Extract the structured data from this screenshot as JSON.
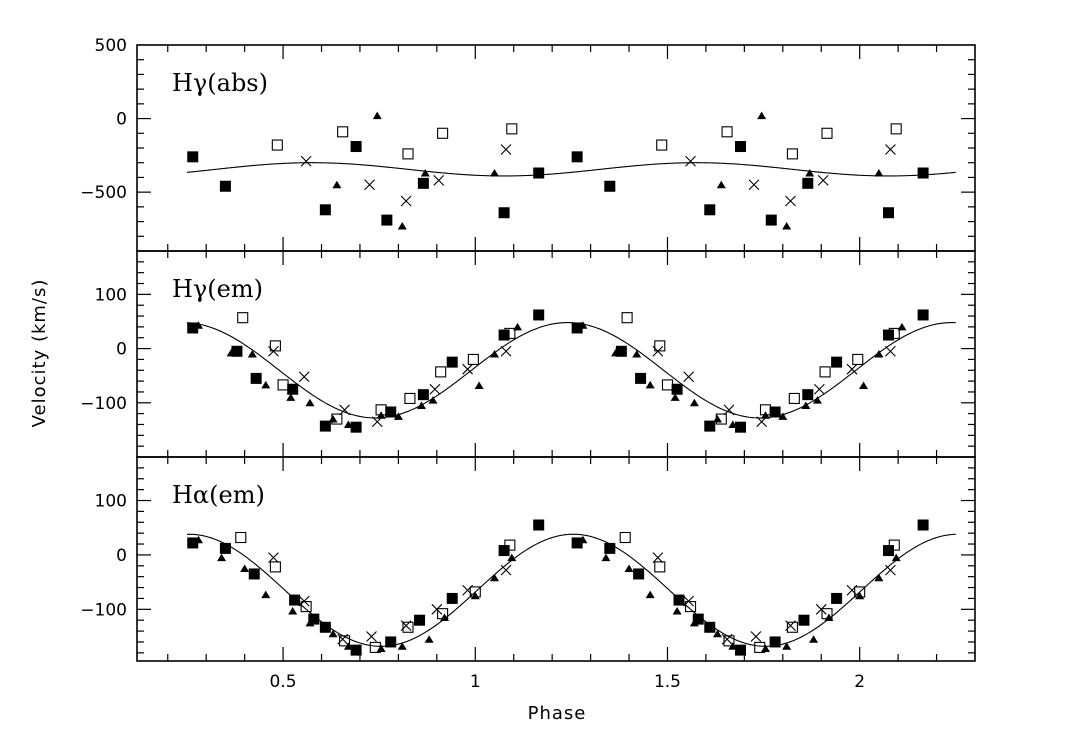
{
  "chart_data": {
    "type": "scatter",
    "xlabel": "Phase",
    "ylabel": "Velocity (km/s)",
    "xlim": [
      0.12,
      2.3
    ],
    "xticks": [
      "0.5",
      "1",
      "1.5",
      "2"
    ],
    "xtick_values": [
      0.5,
      1,
      1.5,
      2
    ],
    "colors": {
      "marker": "#000000",
      "background": "#ffffff"
    },
    "panels": [
      {
        "label": "Hγ(abs)",
        "ylim": [
          -900,
          500
        ],
        "yticks": [
          "500",
          "0",
          "−500"
        ],
        "ytick_values": [
          500,
          0,
          -500
        ],
        "fit": {
          "mean": -345,
          "amplitude": 45,
          "peak_phase": 0.575
        },
        "series": [
          {
            "marker": "filled-square",
            "points": [
              [
                0.265,
                -260
              ],
              [
                0.35,
                -460
              ],
              [
                0.61,
                -620
              ],
              [
                0.69,
                -190
              ],
              [
                0.77,
                -690
              ],
              [
                0.865,
                -440
              ],
              [
                1.075,
                -640
              ],
              [
                1.165,
                -370
              ],
              [
                1.265,
                -260
              ],
              [
                1.35,
                -460
              ],
              [
                1.61,
                -620
              ],
              [
                1.69,
                -190
              ],
              [
                1.77,
                -690
              ],
              [
                1.865,
                -440
              ],
              [
                2.075,
                -640
              ],
              [
                2.165,
                -370
              ]
            ]
          },
          {
            "marker": "open-square",
            "points": [
              [
                0.485,
                -180
              ],
              [
                0.655,
                -90
              ],
              [
                0.825,
                -240
              ],
              [
                0.915,
                -100
              ],
              [
                1.095,
                -70
              ],
              [
                1.485,
                -180
              ],
              [
                1.655,
                -90
              ],
              [
                1.825,
                -240
              ],
              [
                1.915,
                -100
              ],
              [
                2.095,
                -70
              ]
            ]
          },
          {
            "marker": "filled-triangle",
            "points": [
              [
                0.64,
                -450
              ],
              [
                0.745,
                20
              ],
              [
                0.81,
                -730
              ],
              [
                0.87,
                -370
              ],
              [
                1.05,
                -370
              ],
              [
                1.64,
                -450
              ],
              [
                1.745,
                20
              ],
              [
                1.81,
                -730
              ],
              [
                1.87,
                -370
              ],
              [
                2.05,
                -370
              ]
            ]
          },
          {
            "marker": "cross",
            "points": [
              [
                0.56,
                -290
              ],
              [
                0.725,
                -450
              ],
              [
                0.82,
                -560
              ],
              [
                0.905,
                -420
              ],
              [
                1.08,
                -210
              ],
              [
                1.56,
                -290
              ],
              [
                1.725,
                -450
              ],
              [
                1.82,
                -560
              ],
              [
                1.905,
                -420
              ],
              [
                2.08,
                -210
              ]
            ]
          }
        ]
      },
      {
        "label": "Hγ(em)",
        "ylim": [
          -200,
          180
        ],
        "yticks": [
          "100",
          "0",
          "−100"
        ],
        "ytick_values": [
          100,
          0,
          -100
        ],
        "fit": {
          "mean": -40,
          "amplitude": 88,
          "peak_phase": 1.24
        },
        "series": [
          {
            "marker": "filled-square",
            "points": [
              [
                0.265,
                38
              ],
              [
                0.38,
                -5
              ],
              [
                0.43,
                -55
              ],
              [
                0.525,
                -75
              ],
              [
                0.61,
                -143
              ],
              [
                0.69,
                -145
              ],
              [
                0.78,
                -117
              ],
              [
                0.865,
                -85
              ],
              [
                0.94,
                -25
              ],
              [
                1.075,
                25
              ],
              [
                1.165,
                62
              ],
              [
                1.265,
                38
              ],
              [
                1.38,
                -5
              ],
              [
                1.43,
                -55
              ],
              [
                1.525,
                -75
              ],
              [
                1.61,
                -143
              ],
              [
                1.69,
                -145
              ],
              [
                1.78,
                -117
              ],
              [
                1.865,
                -85
              ],
              [
                1.94,
                -25
              ],
              [
                2.075,
                25
              ],
              [
                2.165,
                62
              ]
            ]
          },
          {
            "marker": "open-square",
            "points": [
              [
                0.395,
                57
              ],
              [
                0.48,
                5
              ],
              [
                0.5,
                -67
              ],
              [
                0.64,
                -130
              ],
              [
                0.755,
                -113
              ],
              [
                0.83,
                -92
              ],
              [
                0.91,
                -43
              ],
              [
                0.995,
                -20
              ],
              [
                1.09,
                28
              ],
              [
                1.395,
                57
              ],
              [
                1.48,
                5
              ],
              [
                1.5,
                -67
              ],
              [
                1.64,
                -130
              ],
              [
                1.755,
                -113
              ],
              [
                1.83,
                -92
              ],
              [
                1.91,
                -43
              ],
              [
                1.995,
                -20
              ],
              [
                2.09,
                28
              ]
            ]
          },
          {
            "marker": "filled-triangle",
            "points": [
              [
                0.28,
                43
              ],
              [
                0.365,
                -8
              ],
              [
                0.42,
                -10
              ],
              [
                0.455,
                -67
              ],
              [
                0.52,
                -90
              ],
              [
                0.57,
                -100
              ],
              [
                0.63,
                -130
              ],
              [
                0.67,
                -140
              ],
              [
                0.755,
                -123
              ],
              [
                0.8,
                -125
              ],
              [
                0.86,
                -105
              ],
              [
                0.89,
                -95
              ],
              [
                1.01,
                -68
              ],
              [
                1.05,
                -10
              ],
              [
                1.11,
                40
              ],
              [
                1.28,
                43
              ],
              [
                1.365,
                -8
              ],
              [
                1.42,
                -10
              ],
              [
                1.455,
                -67
              ],
              [
                1.52,
                -90
              ],
              [
                1.57,
                -100
              ],
              [
                1.63,
                -130
              ],
              [
                1.67,
                -140
              ],
              [
                1.755,
                -123
              ],
              [
                1.8,
                -125
              ],
              [
                1.86,
                -105
              ],
              [
                1.89,
                -95
              ],
              [
                2.01,
                -68
              ],
              [
                2.05,
                -10
              ],
              [
                2.11,
                40
              ]
            ]
          },
          {
            "marker": "cross",
            "points": [
              [
                0.475,
                -5
              ],
              [
                0.555,
                -52
              ],
              [
                0.66,
                -113
              ],
              [
                0.745,
                -135
              ],
              [
                0.895,
                -75
              ],
              [
                0.98,
                -38
              ],
              [
                1.08,
                -5
              ],
              [
                1.475,
                -5
              ],
              [
                1.555,
                -52
              ],
              [
                1.66,
                -113
              ],
              [
                1.745,
                -135
              ],
              [
                1.895,
                -75
              ],
              [
                1.98,
                -38
              ],
              [
                2.08,
                -5
              ]
            ]
          }
        ]
      },
      {
        "label": "Hα(em)",
        "ylim": [
          -195,
          180
        ],
        "yticks": [
          "100",
          "0",
          "−100"
        ],
        "ytick_values": [
          100,
          0,
          -100
        ],
        "fit": {
          "mean": -65,
          "amplitude": 103,
          "peak_phase": 1.255
        },
        "series": [
          {
            "marker": "filled-square",
            "points": [
              [
                0.265,
                22
              ],
              [
                0.35,
                12
              ],
              [
                0.425,
                -35
              ],
              [
                0.53,
                -83
              ],
              [
                0.58,
                -118
              ],
              [
                0.61,
                -133
              ],
              [
                0.69,
                -175
              ],
              [
                0.78,
                -160
              ],
              [
                0.855,
                -120
              ],
              [
                0.94,
                -80
              ],
              [
                1.075,
                8
              ],
              [
                1.165,
                55
              ],
              [
                1.265,
                22
              ],
              [
                1.35,
                12
              ],
              [
                1.425,
                -35
              ],
              [
                1.53,
                -83
              ],
              [
                1.58,
                -118
              ],
              [
                1.61,
                -133
              ],
              [
                1.69,
                -175
              ],
              [
                1.78,
                -160
              ],
              [
                1.855,
                -120
              ],
              [
                1.94,
                -80
              ],
              [
                2.075,
                8
              ],
              [
                2.165,
                55
              ]
            ]
          },
          {
            "marker": "open-square",
            "points": [
              [
                0.39,
                32
              ],
              [
                0.48,
                -22
              ],
              [
                0.56,
                -95
              ],
              [
                0.66,
                -158
              ],
              [
                0.74,
                -170
              ],
              [
                0.825,
                -133
              ],
              [
                0.915,
                -108
              ],
              [
                1.0,
                -68
              ],
              [
                1.09,
                18
              ],
              [
                1.39,
                32
              ],
              [
                1.48,
                -22
              ],
              [
                1.56,
                -95
              ],
              [
                1.66,
                -158
              ],
              [
                1.74,
                -170
              ],
              [
                1.825,
                -133
              ],
              [
                1.915,
                -108
              ],
              [
                2.0,
                -68
              ],
              [
                2.09,
                18
              ]
            ]
          },
          {
            "marker": "filled-triangle",
            "points": [
              [
                0.28,
                28
              ],
              [
                0.34,
                -5
              ],
              [
                0.4,
                -25
              ],
              [
                0.455,
                -73
              ],
              [
                0.525,
                -103
              ],
              [
                0.57,
                -125
              ],
              [
                0.63,
                -145
              ],
              [
                0.67,
                -168
              ],
              [
                0.755,
                -172
              ],
              [
                0.81,
                -168
              ],
              [
                0.88,
                -155
              ],
              [
                0.92,
                -115
              ],
              [
                1.0,
                -75
              ],
              [
                1.05,
                -42
              ],
              [
                1.095,
                -5
              ],
              [
                1.28,
                28
              ],
              [
                1.34,
                -5
              ],
              [
                1.4,
                -25
              ],
              [
                1.455,
                -73
              ],
              [
                1.525,
                -103
              ],
              [
                1.57,
                -125
              ],
              [
                1.63,
                -145
              ],
              [
                1.67,
                -168
              ],
              [
                1.755,
                -172
              ],
              [
                1.81,
                -168
              ],
              [
                1.88,
                -155
              ],
              [
                1.92,
                -115
              ],
              [
                2.0,
                -75
              ],
              [
                2.05,
                -42
              ],
              [
                2.095,
                -5
              ]
            ]
          },
          {
            "marker": "cross",
            "points": [
              [
                0.475,
                -5
              ],
              [
                0.555,
                -85
              ],
              [
                0.655,
                -155
              ],
              [
                0.73,
                -150
              ],
              [
                0.82,
                -130
              ],
              [
                0.9,
                -100
              ],
              [
                0.98,
                -65
              ],
              [
                1.08,
                -28
              ],
              [
                1.475,
                -5
              ],
              [
                1.555,
                -85
              ],
              [
                1.655,
                -155
              ],
              [
                1.73,
                -150
              ],
              [
                1.82,
                -130
              ],
              [
                1.9,
                -100
              ],
              [
                1.98,
                -65
              ],
              [
                2.08,
                -28
              ]
            ]
          }
        ]
      }
    ]
  }
}
